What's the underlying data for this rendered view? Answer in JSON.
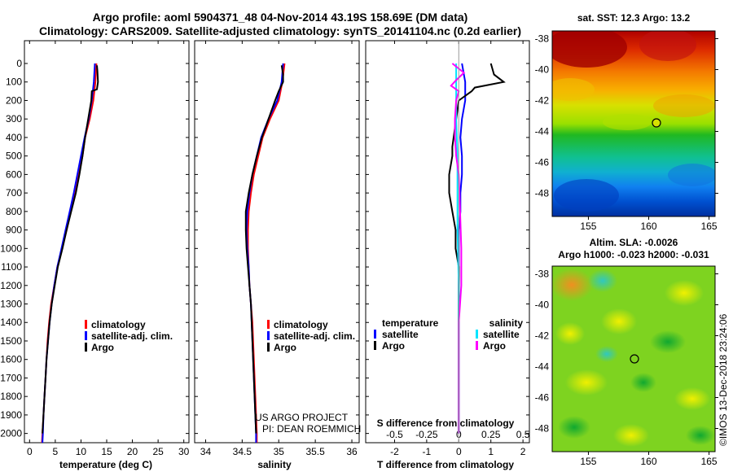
{
  "header": {
    "line1": "Argo profile: aoml 5904371_48 04-Nov-2014 43.19S 158.69E (DM data)",
    "line2": "Climatology: CARS2009. Satellite-adjusted climatology: synTS_20141104.nc (0.2d earlier)"
  },
  "credit": {
    "project": "US ARGO PROJECT",
    "pi": "PI: DEAN ROEMMICH"
  },
  "watermark": "©IMOS 13-Dec-2018 23:24:06",
  "colors": {
    "climatology": "#ff0000",
    "satellite_adj": "#0000ff",
    "argo": "#000000",
    "sal_satellite": "#00e5ff",
    "sal_argo": "#ff00ff"
  },
  "chart_data": [
    {
      "type": "line",
      "panel": "temperature",
      "xlabel": "temperature (deg C)",
      "xlim": [
        -1,
        31
      ],
      "xticks": [
        "0",
        "5",
        "10",
        "15",
        "20",
        "25",
        "30"
      ],
      "ylim": [
        0,
        2050
      ],
      "yreversed": true,
      "yticks": [
        "0",
        "100",
        "200",
        "300",
        "400",
        "500",
        "600",
        "700",
        "800",
        "900",
        "1000",
        "1100",
        "1200",
        "1300",
        "1400",
        "1500",
        "1600",
        "1700",
        "1800",
        "1900",
        "2000"
      ],
      "legend": [
        "climatology",
        "satellite-adj. clim.",
        "Argo"
      ],
      "legend_position": "lower-center",
      "series": [
        {
          "name": "climatology",
          "color": "#ff0000",
          "points": [
            [
              13.0,
              0
            ],
            [
              12.8,
              100
            ],
            [
              12.4,
              200
            ],
            [
              11.7,
              300
            ],
            [
              10.8,
              400
            ],
            [
              10.3,
              500
            ],
            [
              9.6,
              600
            ],
            [
              8.9,
              700
            ],
            [
              8.0,
              800
            ],
            [
              7.2,
              900
            ],
            [
              6.3,
              1000
            ],
            [
              5.4,
              1100
            ],
            [
              4.8,
              1200
            ],
            [
              4.2,
              1300
            ],
            [
              3.8,
              1400
            ],
            [
              3.5,
              1500
            ],
            [
              3.3,
              1600
            ],
            [
              3.1,
              1700
            ],
            [
              2.9,
              1800
            ],
            [
              2.7,
              1900
            ],
            [
              2.5,
              2000
            ],
            [
              2.4,
              2050
            ]
          ]
        },
        {
          "name": "satellite-adj. clim.",
          "color": "#0000ff",
          "points": [
            [
              12.7,
              0
            ],
            [
              12.5,
              100
            ],
            [
              12.1,
              200
            ],
            [
              11.5,
              300
            ],
            [
              10.7,
              400
            ],
            [
              10.0,
              500
            ],
            [
              9.3,
              600
            ],
            [
              8.6,
              700
            ],
            [
              7.8,
              800
            ],
            [
              7.0,
              900
            ],
            [
              6.2,
              1000
            ],
            [
              5.4,
              1100
            ],
            [
              4.8,
              1200
            ],
            [
              4.3,
              1300
            ],
            [
              3.9,
              1400
            ],
            [
              3.6,
              1500
            ],
            [
              3.3,
              1600
            ],
            [
              3.1,
              1700
            ],
            [
              2.9,
              1800
            ],
            [
              2.7,
              1900
            ],
            [
              2.6,
              2000
            ],
            [
              2.5,
              2050
            ]
          ]
        },
        {
          "name": "Argo",
          "color": "#000000",
          "points": [
            [
              13.1,
              10
            ],
            [
              13.2,
              40
            ],
            [
              13.3,
              100
            ],
            [
              13.1,
              140
            ],
            [
              12.1,
              150
            ],
            [
              12.0,
              200
            ],
            [
              11.4,
              300
            ],
            [
              10.8,
              400
            ],
            [
              10.3,
              500
            ],
            [
              9.7,
              600
            ],
            [
              9.0,
              700
            ],
            [
              8.1,
              800
            ],
            [
              7.2,
              900
            ],
            [
              6.4,
              1000
            ],
            [
              5.5,
              1100
            ],
            [
              4.9,
              1200
            ],
            [
              4.3,
              1300
            ],
            [
              3.9,
              1400
            ],
            [
              3.6,
              1500
            ],
            [
              3.3,
              1600
            ],
            [
              3.1,
              1700
            ],
            [
              2.9,
              1800
            ],
            [
              2.7,
              1900
            ],
            [
              2.5,
              2000
            ]
          ]
        }
      ]
    },
    {
      "type": "line",
      "panel": "salinity",
      "xlabel": "salinity",
      "xlim": [
        33.85,
        36.1
      ],
      "xticks": [
        "34",
        "34.5",
        "35",
        "35.5",
        "36"
      ],
      "ylim": [
        0,
        2050
      ],
      "yreversed": true,
      "legend": [
        "climatology",
        "satellite-adj. clim.",
        "Argo"
      ],
      "legend_position": "lower-center",
      "series": [
        {
          "name": "climatology",
          "color": "#ff0000",
          "points": [
            [
              35.08,
              0
            ],
            [
              35.05,
              100
            ],
            [
              35.0,
              200
            ],
            [
              34.88,
              300
            ],
            [
              34.78,
              400
            ],
            [
              34.72,
              500
            ],
            [
              34.66,
              600
            ],
            [
              34.62,
              700
            ],
            [
              34.59,
              800
            ],
            [
              34.58,
              900
            ],
            [
              34.58,
              1000
            ],
            [
              34.59,
              1100
            ],
            [
              34.6,
              1200
            ],
            [
              34.62,
              1300
            ],
            [
              34.64,
              1400
            ],
            [
              34.65,
              1500
            ],
            [
              34.66,
              1600
            ],
            [
              34.67,
              1700
            ],
            [
              34.68,
              1800
            ],
            [
              34.69,
              1900
            ],
            [
              34.7,
              2000
            ],
            [
              34.7,
              2050
            ]
          ]
        },
        {
          "name": "satellite-adj. clim.",
          "color": "#0000ff",
          "points": [
            [
              35.06,
              0
            ],
            [
              35.04,
              100
            ],
            [
              34.98,
              200
            ],
            [
              34.86,
              300
            ],
            [
              34.76,
              400
            ],
            [
              34.7,
              500
            ],
            [
              34.64,
              600
            ],
            [
              34.6,
              700
            ],
            [
              34.57,
              800
            ],
            [
              34.56,
              900
            ],
            [
              34.57,
              1000
            ],
            [
              34.59,
              1100
            ],
            [
              34.6,
              1200
            ],
            [
              34.62,
              1300
            ],
            [
              34.63,
              1400
            ],
            [
              34.64,
              1500
            ],
            [
              34.65,
              1600
            ],
            [
              34.66,
              1700
            ],
            [
              34.67,
              1800
            ],
            [
              34.68,
              1900
            ],
            [
              34.69,
              2000
            ],
            [
              34.69,
              2050
            ]
          ]
        },
        {
          "name": "Argo",
          "color": "#000000",
          "points": [
            [
              35.04,
              10
            ],
            [
              35.06,
              60
            ],
            [
              35.06,
              100
            ],
            [
              35.0,
              150
            ],
            [
              34.95,
              200
            ],
            [
              34.86,
              300
            ],
            [
              34.77,
              400
            ],
            [
              34.7,
              500
            ],
            [
              34.64,
              600
            ],
            [
              34.59,
              700
            ],
            [
              34.55,
              800
            ],
            [
              34.55,
              900
            ],
            [
              34.56,
              1000
            ],
            [
              34.58,
              1100
            ],
            [
              34.6,
              1200
            ],
            [
              34.62,
              1300
            ],
            [
              34.63,
              1400
            ],
            [
              34.64,
              1500
            ],
            [
              34.65,
              1600
            ],
            [
              34.66,
              1700
            ],
            [
              34.67,
              1800
            ],
            [
              34.68,
              1900
            ],
            [
              34.69,
              2000
            ]
          ]
        }
      ]
    },
    {
      "type": "line",
      "panel": "difference",
      "xlabel": "T difference from climatology",
      "xlabel_top": "S difference from climatology",
      "xlim": [
        -2.9,
        2.2
      ],
      "xticks": [
        "-2",
        "-1",
        "0",
        "1",
        "2"
      ],
      "xticks_s": [
        "-0.5",
        "-0.25",
        "0",
        "0.25",
        "0.5"
      ],
      "ylim": [
        0,
        2050
      ],
      "yreversed": true,
      "legend_left_title": "temperature",
      "legend_left": [
        "satellite",
        "Argo"
      ],
      "legend_right_title": "salinity",
      "legend_right": [
        "satellite",
        "Argo"
      ],
      "series": [
        {
          "name": "temperature satellite",
          "color": "#0000ff",
          "points": [
            [
              0.1,
              0
            ],
            [
              0.2,
              100
            ],
            [
              0.2,
              200
            ],
            [
              0.1,
              300
            ],
            [
              0.05,
              400
            ],
            [
              0.1,
              500
            ],
            [
              0.1,
              600
            ],
            [
              0.05,
              700
            ],
            [
              0.05,
              800
            ],
            [
              0.0,
              900
            ],
            [
              0.0,
              1000
            ],
            [
              0.0,
              1200
            ],
            [
              0.0,
              1400
            ],
            [
              0.0,
              1600
            ],
            [
              0.0,
              2000
            ]
          ]
        },
        {
          "name": "temperature Argo",
          "color": "#000000",
          "points": [
            [
              1.0,
              0
            ],
            [
              1.1,
              60
            ],
            [
              1.4,
              100
            ],
            [
              0.5,
              130
            ],
            [
              0.4,
              150
            ],
            [
              0.0,
              200
            ],
            [
              -0.2,
              450
            ],
            [
              -0.2,
              500
            ],
            [
              -0.3,
              600
            ],
            [
              -0.3,
              700
            ],
            [
              -0.2,
              800
            ],
            [
              -0.1,
              900
            ],
            [
              -0.1,
              1000
            ],
            [
              0.0,
              1100
            ],
            [
              0.0,
              1300
            ],
            [
              0.0,
              1500
            ],
            [
              0.0,
              1700
            ],
            [
              0.0,
              2000
            ]
          ]
        },
        {
          "name": "salinity satellite",
          "color": "#00e5ff",
          "points": [
            [
              -0.02,
              0
            ],
            [
              -0.02,
              100
            ],
            [
              -0.02,
              200
            ],
            [
              -0.02,
              300
            ],
            [
              -0.01,
              500
            ],
            [
              -0.01,
              700
            ],
            [
              -0.01,
              900
            ],
            [
              0.0,
              1200
            ],
            [
              0.0,
              1500
            ],
            [
              0.0,
              2000
            ]
          ]
        },
        {
          "name": "salinity Argo",
          "color": "#ff00ff",
          "points": [
            [
              -0.05,
              0
            ],
            [
              0.04,
              50
            ],
            [
              -0.02,
              90
            ],
            [
              -0.06,
              120
            ],
            [
              0.0,
              150
            ],
            [
              -0.02,
              200
            ],
            [
              -0.03,
              300
            ],
            [
              -0.03,
              400
            ],
            [
              -0.02,
              500
            ],
            [
              0.0,
              600
            ],
            [
              0.01,
              800
            ],
            [
              0.02,
              1000
            ],
            [
              0.02,
              1200
            ],
            [
              0.0,
              1400
            ],
            [
              0.0,
              1600
            ],
            [
              0.0,
              2000
            ]
          ]
        }
      ]
    },
    {
      "type": "heatmap",
      "panel": "sst-map",
      "title": "sat. SST: 12.3 Argo: 13.2",
      "xticks": [
        "155",
        "160",
        "165"
      ],
      "yticks": [
        "-38",
        "-40",
        "-42",
        "-44",
        "-46",
        "-48"
      ],
      "marker": [
        158.69,
        -43.19
      ]
    },
    {
      "type": "heatmap",
      "panel": "sla-map",
      "title": "Altim. SLA: -0.0026",
      "subtitle": "Argo h1000: -0.023 h2000: -0.031",
      "xticks": [
        "155",
        "160",
        "165"
      ],
      "yticks": [
        "-38",
        "-40",
        "-42",
        "-44",
        "-46",
        "-48"
      ],
      "marker": [
        158.69,
        -43.19
      ]
    }
  ]
}
